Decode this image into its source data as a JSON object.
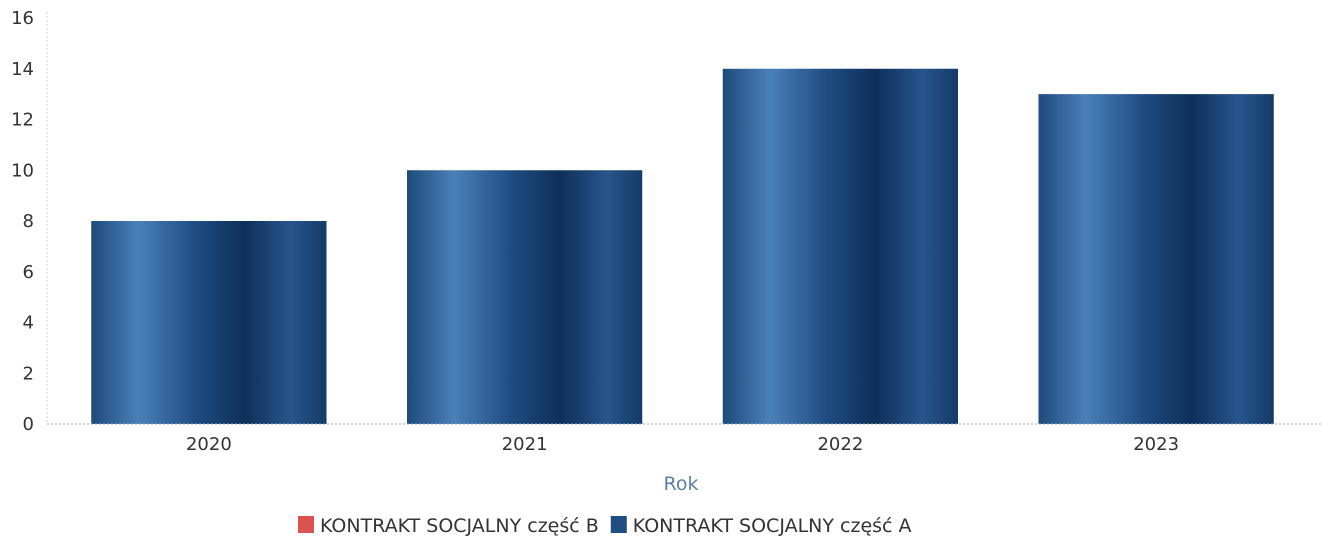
{
  "chart_data": {
    "type": "bar",
    "categories": [
      "2020",
      "2021",
      "2022",
      "2023"
    ],
    "series": [
      {
        "name": "KONTRAKT SOCJALNY część B",
        "values": [
          0,
          0,
          0,
          0
        ],
        "color": "#d9534f"
      },
      {
        "name": "KONTRAKT SOCJALNY część A",
        "values": [
          8,
          10,
          14,
          13
        ],
        "color": "#1f4e82"
      }
    ],
    "title": "",
    "xlabel": "Rok",
    "ylabel": "",
    "ylim": [
      0,
      16
    ],
    "yticks": [
      "0",
      "2",
      "4",
      "6",
      "8",
      "10",
      "12",
      "14",
      "16"
    ],
    "grid": false,
    "legend_position": "bottom"
  }
}
